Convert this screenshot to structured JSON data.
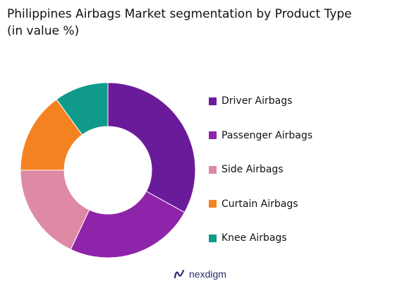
{
  "title_line1": "Philippines Airbags Market segmentation by Product Type",
  "title_line2": "(in value %)",
  "brand": {
    "name": "nexdigm",
    "icon": "nexdigm-logo-icon"
  },
  "chart_data": {
    "type": "pie",
    "variant": "donut",
    "title": "Philippines Airbags Market segmentation by Product Type (in value %)",
    "legend_position": "right",
    "categories": [
      "Driver Airbags",
      "Passenger Airbags",
      "Side Airbags",
      "Curtain Airbags",
      "Knee Airbags"
    ],
    "values": [
      33,
      24,
      18,
      15,
      10
    ],
    "colors": [
      "#6a1b9a",
      "#8e24aa",
      "#de8aa4",
      "#f58220",
      "#0f9a8c"
    ]
  }
}
